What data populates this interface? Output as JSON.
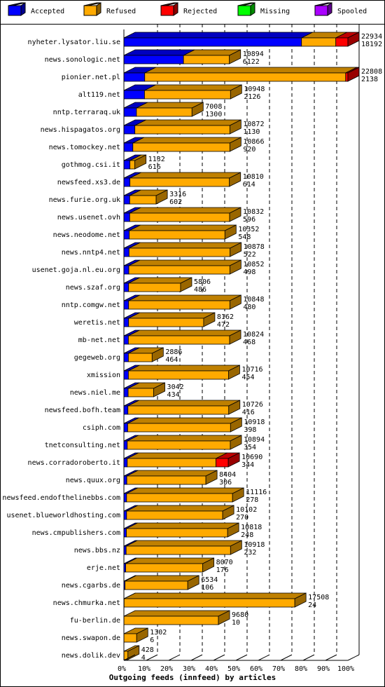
{
  "chart_data": {
    "type": "bar",
    "stacked": true,
    "orientation": "horizontal",
    "title": "Outgoing feeds (innfeed) by articles",
    "xlim": [
      0,
      100
    ],
    "x_ticks": [
      "0%",
      "10%",
      "20%",
      "30%",
      "40%",
      "50%",
      "60%",
      "70%",
      "80%",
      "90%",
      "100%"
    ],
    "grid": true,
    "legend_position": "top",
    "series": [
      {
        "name": "Accepted",
        "color": "#0000ff"
      },
      {
        "name": "Refused",
        "color": "#ffaa00"
      },
      {
        "name": "Rejected",
        "color": "#ff0000"
      },
      {
        "name": "Missing",
        "color": "#00ff00"
      },
      {
        "name": "Spooled",
        "color": "#aa00ff"
      }
    ],
    "rows": [
      {
        "host": "nyheter.lysator.liu.se",
        "total": 22934,
        "accepted": 18192,
        "pct": [
          79.3,
          15.3,
          5.4,
          0,
          0
        ]
      },
      {
        "host": "news.sonologic.net",
        "total": 10894,
        "accepted": 6122,
        "pct": [
          26.6,
          20.5,
          0,
          0,
          0
        ]
      },
      {
        "host": "pionier.net.pl",
        "total": 22808,
        "accepted": 2138,
        "pct": [
          9.3,
          89.7,
          1.0,
          0,
          0
        ]
      },
      {
        "host": "alt119.net",
        "total": 10948,
        "accepted": 2126,
        "pct": [
          9.2,
          38.4,
          0,
          0,
          0
        ]
      },
      {
        "host": "nntp.terraraq.uk",
        "total": 7008,
        "accepted": 1300,
        "pct": [
          5.6,
          24.8,
          0,
          0,
          0
        ]
      },
      {
        "host": "news.hispagatos.org",
        "total": 10872,
        "accepted": 1130,
        "pct": [
          4.9,
          42.4,
          0,
          0,
          0
        ]
      },
      {
        "host": "news.tomockey.net",
        "total": 10866,
        "accepted": 920,
        "pct": [
          4.0,
          43.3,
          0,
          0,
          0
        ]
      },
      {
        "host": "gothmog.csi.it",
        "total": 1132,
        "accepted": 616,
        "pct": [
          2.7,
          2.2,
          0,
          0,
          0
        ]
      },
      {
        "host": "newsfeed.xs3.de",
        "total": 10810,
        "accepted": 614,
        "pct": [
          2.7,
          44.4,
          0,
          0,
          0
        ]
      },
      {
        "host": "news.furie.org.uk",
        "total": 3316,
        "accepted": 602,
        "pct": [
          2.6,
          11.8,
          0,
          0,
          0
        ]
      },
      {
        "host": "news.usenet.ovh",
        "total": 10832,
        "accepted": 596,
        "pct": [
          2.6,
          44.6,
          0,
          0,
          0
        ]
      },
      {
        "host": "news.neodome.net",
        "total": 10352,
        "accepted": 548,
        "pct": [
          2.4,
          42.7,
          0,
          0,
          0
        ]
      },
      {
        "host": "news.nntp4.net",
        "total": 10878,
        "accepted": 522,
        "pct": [
          2.3,
          45.1,
          0,
          0,
          0
        ]
      },
      {
        "host": "usenet.goja.nl.eu.org",
        "total": 10852,
        "accepted": 498,
        "pct": [
          2.2,
          45.1,
          0,
          0,
          0
        ]
      },
      {
        "host": "news.szaf.org",
        "total": 5806,
        "accepted": 486,
        "pct": [
          2.1,
          23.2,
          0,
          0,
          0
        ]
      },
      {
        "host": "nntp.comgw.net",
        "total": 10848,
        "accepted": 480,
        "pct": [
          2.1,
          45.2,
          0,
          0,
          0
        ]
      },
      {
        "host": "weretis.net",
        "total": 8162,
        "accepted": 472,
        "pct": [
          2.1,
          33.5,
          0,
          0,
          0
        ]
      },
      {
        "host": "mb-net.net",
        "total": 10824,
        "accepted": 468,
        "pct": [
          2.0,
          45.2,
          0,
          0,
          0
        ]
      },
      {
        "host": "gegeweb.org",
        "total": 2886,
        "accepted": 464,
        "pct": [
          2.0,
          10.6,
          0,
          0,
          0
        ]
      },
      {
        "host": "xmission",
        "total": 10716,
        "accepted": 454,
        "pct": [
          2.0,
          44.7,
          0,
          0,
          0
        ]
      },
      {
        "host": "news.niel.me",
        "total": 3042,
        "accepted": 434,
        "pct": [
          1.9,
          11.4,
          0,
          0,
          0
        ]
      },
      {
        "host": "newsfeed.bofh.team",
        "total": 10726,
        "accepted": 416,
        "pct": [
          1.8,
          45.0,
          0,
          0,
          0
        ]
      },
      {
        "host": "csiph.com",
        "total": 10918,
        "accepted": 398,
        "pct": [
          1.7,
          45.9,
          0,
          0,
          0
        ]
      },
      {
        "host": "tnetconsulting.net",
        "total": 10894,
        "accepted": 354,
        "pct": [
          1.5,
          46.0,
          0,
          0,
          0
        ]
      },
      {
        "host": "news.corradoroberto.it",
        "total": 10690,
        "accepted": 344,
        "pct": [
          1.5,
          39.6,
          5.5,
          0,
          0
        ]
      },
      {
        "host": "news.quux.org",
        "total": 8404,
        "accepted": 306,
        "pct": [
          1.3,
          35.3,
          0,
          0,
          0
        ]
      },
      {
        "host": "newsfeed.endofthelinebbs.com",
        "total": 11116,
        "accepted": 278,
        "pct": [
          1.2,
          47.3,
          0,
          0,
          0
        ]
      },
      {
        "host": "usenet.blueworldhosting.com",
        "total": 10102,
        "accepted": 270,
        "pct": [
          1.2,
          42.9,
          0,
          0,
          0
        ]
      },
      {
        "host": "news.cmpublishers.com",
        "total": 10818,
        "accepted": 248,
        "pct": [
          1.1,
          45.2,
          0,
          0,
          0
        ]
      },
      {
        "host": "news.bbs.nz",
        "total": 10918,
        "accepted": 232,
        "pct": [
          1.0,
          46.6,
          0,
          0,
          0
        ]
      },
      {
        "host": "erje.net",
        "total": 8070,
        "accepted": 176,
        "pct": [
          0.8,
          34.4,
          0,
          0,
          0
        ]
      },
      {
        "host": "news.cgarbs.de",
        "total": 6534,
        "accepted": 106,
        "pct": [
          0.5,
          28.0,
          0,
          0,
          0
        ]
      },
      {
        "host": "news.chmurka.net",
        "total": 17508,
        "accepted": 24,
        "pct": [
          0.1,
          76.2,
          0,
          0,
          0
        ]
      },
      {
        "host": "fu-berlin.de",
        "total": 9680,
        "accepted": 10,
        "pct": [
          0,
          42.2,
          0,
          0,
          0
        ]
      },
      {
        "host": "news.swapon.de",
        "total": 1302,
        "accepted": 6,
        "pct": [
          0,
          5.7,
          0,
          0,
          0
        ]
      },
      {
        "host": "news.dolik.dev",
        "total": 428,
        "accepted": 4,
        "pct": [
          0,
          1.8,
          0,
          0,
          0
        ]
      }
    ]
  }
}
